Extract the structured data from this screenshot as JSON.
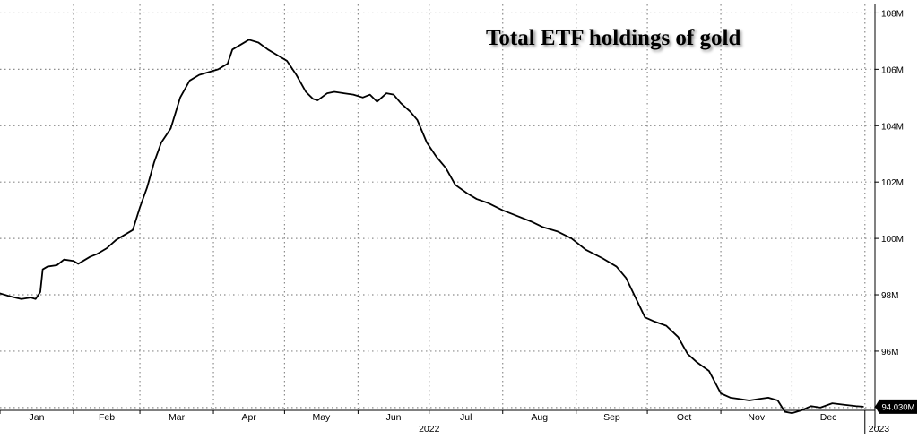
{
  "chart_data": {
    "type": "line",
    "title": "Total ETF holdings of gold",
    "xlabel": "",
    "ylabel": "",
    "year_label": "2022",
    "next_year_label": "2023",
    "x_ticks": [
      "Jan",
      "Feb",
      "Mar",
      "Apr",
      "May",
      "Jun",
      "Jul",
      "Aug",
      "Sep",
      "Oct",
      "Nov",
      "Dec"
    ],
    "y_ticks": [
      "94M",
      "96M",
      "98M",
      "100M",
      "102M",
      "104M",
      "106M",
      "108M"
    ],
    "ylim": [
      93.9,
      108.3
    ],
    "grid": true,
    "last_value_label": "94.030M",
    "series": [
      {
        "values": [
          [
            "2022-01-01",
            98.05
          ],
          [
            "2022-01-05",
            97.95
          ],
          [
            "2022-01-10",
            97.85
          ],
          [
            "2022-01-14",
            97.9
          ],
          [
            "2022-01-16",
            97.85
          ],
          [
            "2022-01-18",
            98.1
          ],
          [
            "2022-01-19",
            98.9
          ],
          [
            "2022-01-21",
            99.0
          ],
          [
            "2022-01-25",
            99.05
          ],
          [
            "2022-01-28",
            99.25
          ],
          [
            "2022-02-01",
            99.2
          ],
          [
            "2022-02-03",
            99.1
          ],
          [
            "2022-02-08",
            99.35
          ],
          [
            "2022-02-11",
            99.45
          ],
          [
            "2022-02-15",
            99.65
          ],
          [
            "2022-02-19",
            99.95
          ],
          [
            "2022-02-24",
            100.2
          ],
          [
            "2022-02-26",
            100.3
          ],
          [
            "2022-03-01",
            101.1
          ],
          [
            "2022-03-04",
            101.8
          ],
          [
            "2022-03-07",
            102.7
          ],
          [
            "2022-03-10",
            103.4
          ],
          [
            "2022-03-14",
            103.9
          ],
          [
            "2022-03-18",
            105.0
          ],
          [
            "2022-03-22",
            105.6
          ],
          [
            "2022-03-26",
            105.8
          ],
          [
            "2022-03-30",
            105.9
          ],
          [
            "2022-04-03",
            106.0
          ],
          [
            "2022-04-07",
            106.2
          ],
          [
            "2022-04-09",
            106.7
          ],
          [
            "2022-04-13",
            106.9
          ],
          [
            "2022-04-16",
            107.05
          ],
          [
            "2022-04-20",
            106.95
          ],
          [
            "2022-04-24",
            106.7
          ],
          [
            "2022-04-28",
            106.5
          ],
          [
            "2022-05-02",
            106.3
          ],
          [
            "2022-05-06",
            105.8
          ],
          [
            "2022-05-10",
            105.2
          ],
          [
            "2022-05-13",
            104.95
          ],
          [
            "2022-05-15",
            104.9
          ],
          [
            "2022-05-19",
            105.15
          ],
          [
            "2022-05-22",
            105.2
          ],
          [
            "2022-05-26",
            105.15
          ],
          [
            "2022-05-30",
            105.1
          ],
          [
            "2022-06-03",
            105.0
          ],
          [
            "2022-06-06",
            105.1
          ],
          [
            "2022-06-09",
            104.85
          ],
          [
            "2022-06-13",
            105.15
          ],
          [
            "2022-06-16",
            105.1
          ],
          [
            "2022-06-19",
            104.8
          ],
          [
            "2022-06-23",
            104.5
          ],
          [
            "2022-06-26",
            104.2
          ],
          [
            "2022-06-30",
            103.4
          ],
          [
            "2022-07-04",
            102.9
          ],
          [
            "2022-07-08",
            102.5
          ],
          [
            "2022-07-12",
            101.9
          ],
          [
            "2022-07-17",
            101.6
          ],
          [
            "2022-07-21",
            101.4
          ],
          [
            "2022-07-26",
            101.25
          ],
          [
            "2022-08-01",
            101.0
          ],
          [
            "2022-08-07",
            100.8
          ],
          [
            "2022-08-13",
            100.6
          ],
          [
            "2022-08-18",
            100.4
          ],
          [
            "2022-08-24",
            100.25
          ],
          [
            "2022-08-30",
            100.0
          ],
          [
            "2022-09-05",
            99.6
          ],
          [
            "2022-09-12",
            99.3
          ],
          [
            "2022-09-18",
            99.0
          ],
          [
            "2022-09-22",
            98.6
          ],
          [
            "2022-09-26",
            97.9
          ],
          [
            "2022-09-30",
            97.2
          ],
          [
            "2022-10-04",
            97.05
          ],
          [
            "2022-10-09",
            96.9
          ],
          [
            "2022-10-14",
            96.5
          ],
          [
            "2022-10-18",
            95.9
          ],
          [
            "2022-10-22",
            95.6
          ],
          [
            "2022-10-27",
            95.3
          ],
          [
            "2022-11-01",
            94.5
          ],
          [
            "2022-11-05",
            94.35
          ],
          [
            "2022-11-09",
            94.3
          ],
          [
            "2022-11-13",
            94.25
          ],
          [
            "2022-11-17",
            94.3
          ],
          [
            "2022-11-21",
            94.35
          ],
          [
            "2022-11-25",
            94.25
          ],
          [
            "2022-11-28",
            93.85
          ],
          [
            "2022-12-01",
            93.8
          ],
          [
            "2022-12-05",
            93.9
          ],
          [
            "2022-12-09",
            94.05
          ],
          [
            "2022-12-13",
            94.0
          ],
          [
            "2022-12-18",
            94.15
          ],
          [
            "2022-12-23",
            94.1
          ],
          [
            "2022-12-28",
            94.05
          ],
          [
            "2022-12-31",
            94.03
          ]
        ]
      }
    ]
  },
  "colors": {
    "background": "#ffffff",
    "line": "#000000",
    "grid": "#8c8c8c",
    "axis": "#000000",
    "label_box": "#000000",
    "label_text": "#ffffff"
  }
}
